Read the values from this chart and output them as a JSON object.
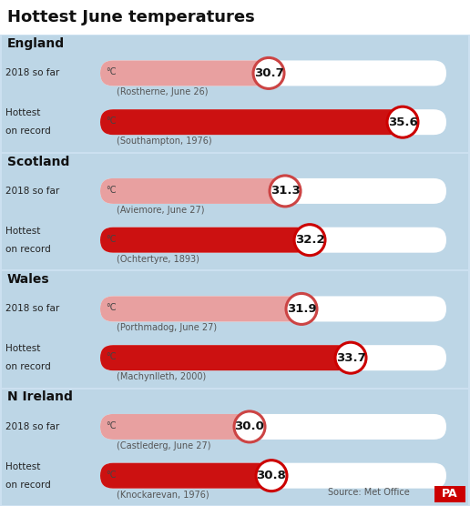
{
  "title": "Hottest June temperatures",
  "background_color": "#cce0f0",
  "section_bg_color": "#c5dcea",
  "bar_bg_color": "#ffffff",
  "sections": [
    {
      "region": "England",
      "rows": [
        {
          "label1": "2018 so far",
          "label2": "",
          "value": 30.7,
          "location": "(Rostherne, June 26)",
          "is_record": false
        },
        {
          "label1": "Hottest",
          "label2": "on record",
          "value": 35.6,
          "location": "(Southampton, 1976)",
          "is_record": true
        }
      ]
    },
    {
      "region": "Scotland",
      "rows": [
        {
          "label1": "2018 so far",
          "label2": "",
          "value": 31.3,
          "location": "(Aviemore, June 27)",
          "is_record": false
        },
        {
          "label1": "Hottest",
          "label2": "on record",
          "value": 32.2,
          "location": "(Ochtertyre, 1893)",
          "is_record": true
        }
      ]
    },
    {
      "region": "Wales",
      "rows": [
        {
          "label1": "2018 so far",
          "label2": "",
          "value": 31.9,
          "location": "(Porthmadog, June 27)",
          "is_record": false
        },
        {
          "label1": "Hottest",
          "label2": "on record",
          "value": 33.7,
          "location": "(Machynlleth, 2000)",
          "is_record": true
        }
      ]
    },
    {
      "region": "N Ireland",
      "rows": [
        {
          "label1": "2018 so far",
          "label2": "",
          "value": 30.0,
          "location": "(Castlederg, June 27)",
          "is_record": false
        },
        {
          "label1": "Hottest",
          "label2": "on record",
          "value": 30.8,
          "location": "(Knockarevan, 1976)",
          "is_record": true
        }
      ]
    }
  ],
  "bar_color_current": "#e8a0a0",
  "bar_color_record": "#cc1111",
  "circle_edge_current": "#cc4444",
  "circle_edge_record": "#cc0000",
  "temp_min": 25.0,
  "temp_max": 36.5,
  "source_text": "Source: Met Office"
}
